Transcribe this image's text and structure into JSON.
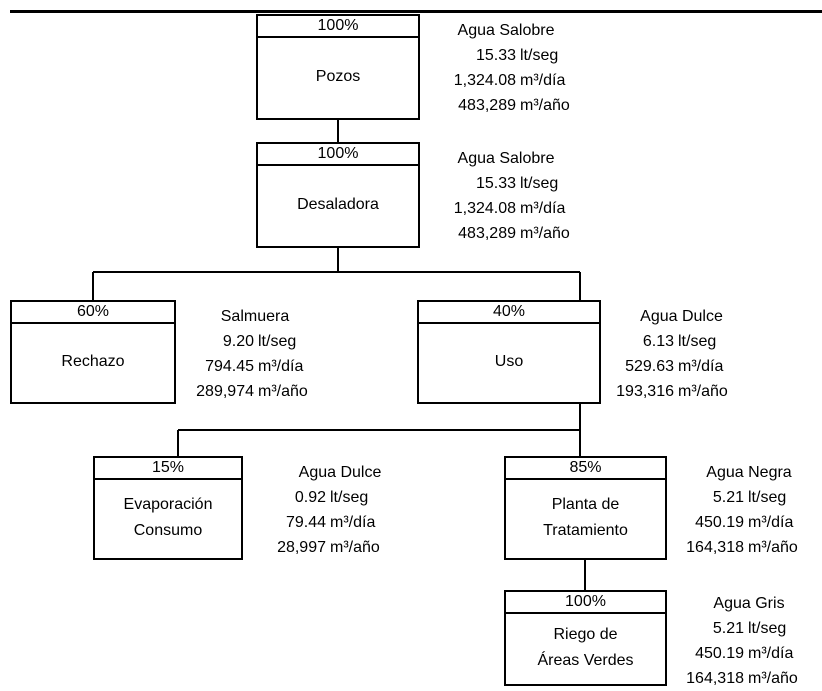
{
  "nodes": {
    "pozos": {
      "pct": "100%",
      "label": [
        "Pozos"
      ],
      "info": {
        "type": "Agua Salobre",
        "rows": [
          [
            "15.33",
            "lt/seg"
          ],
          [
            "1,324.08",
            "m³/día"
          ],
          [
            "483,289",
            "m³/año"
          ]
        ]
      }
    },
    "desaladora": {
      "pct": "100%",
      "label": [
        "Desaladora"
      ],
      "info": {
        "type": "Agua Salobre",
        "rows": [
          [
            "15.33",
            "lt/seg"
          ],
          [
            "1,324.08",
            "m³/día"
          ],
          [
            "483,289",
            "m³/año"
          ]
        ]
      }
    },
    "rechazo": {
      "pct": "60%",
      "label": [
        "Rechazo"
      ],
      "info": {
        "type": "Salmuera",
        "rows": [
          [
            "9.20",
            "lt/seg"
          ],
          [
            "794.45",
            "m³/día"
          ],
          [
            "289,974",
            "m³/año"
          ]
        ]
      }
    },
    "uso": {
      "pct": "40%",
      "label": [
        "Uso"
      ],
      "info": {
        "type": "Agua Dulce",
        "rows": [
          [
            "6.13",
            "lt/seg"
          ],
          [
            "529.63",
            "m³/día"
          ],
          [
            "193,316",
            "m³/año"
          ]
        ]
      }
    },
    "evaporacion": {
      "pct": "15%",
      "label": [
        "Evaporación",
        "Consumo"
      ],
      "info": {
        "type": "Agua Dulce",
        "rows": [
          [
            "0.92",
            "lt/seg"
          ],
          [
            "79.44",
            "m³/día"
          ],
          [
            "28,997",
            "m³/año"
          ]
        ]
      }
    },
    "planta": {
      "pct": "85%",
      "label": [
        "Planta de",
        "Tratamiento"
      ],
      "info": {
        "type": "Agua Negra",
        "rows": [
          [
            "5.21",
            "lt/seg"
          ],
          [
            "450.19",
            "m³/día"
          ],
          [
            "164,318",
            "m³/año"
          ]
        ]
      }
    },
    "riego": {
      "pct": "100%",
      "label": [
        "Riego de",
        "Áreas Verdes"
      ],
      "info": {
        "type": "Agua Gris",
        "rows": [
          [
            "5.21",
            "lt/seg"
          ],
          [
            "450.19",
            "m³/día"
          ],
          [
            "164,318",
            "m³/año"
          ]
        ]
      }
    }
  }
}
